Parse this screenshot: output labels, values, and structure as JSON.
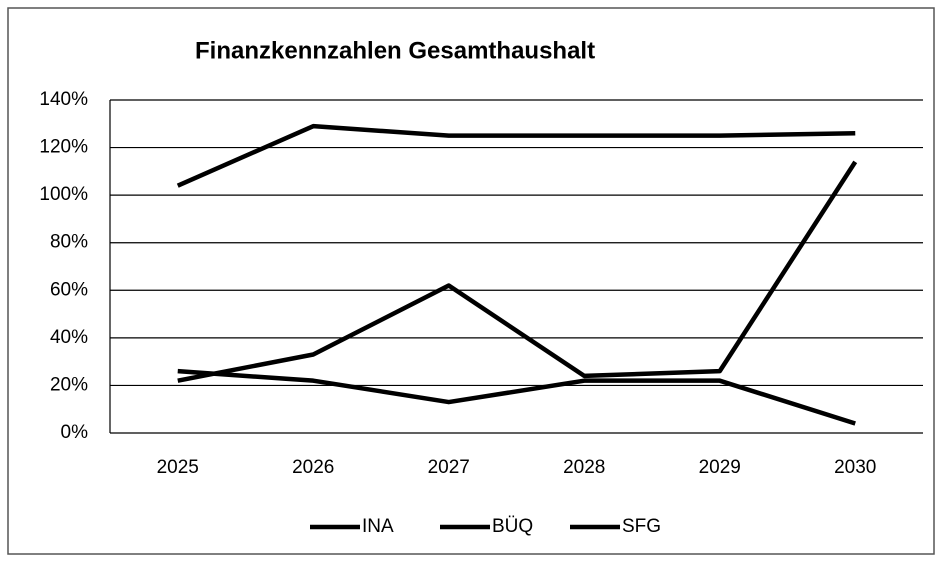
{
  "chart_data": {
    "type": "line",
    "title": "Finanzkennzahlen Gesamthaushalt",
    "categories": [
      "2025",
      "2026",
      "2027",
      "2028",
      "2029",
      "2030"
    ],
    "series": [
      {
        "name": "INA",
        "color": "#000000",
        "values": [
          104,
          129,
          125,
          125,
          125,
          126
        ]
      },
      {
        "name": "BÜQ",
        "color": "#000000",
        "values": [
          22,
          33,
          62,
          24,
          26,
          114
        ]
      },
      {
        "name": "SFG",
        "color": "#000000",
        "values": [
          26,
          22,
          13,
          22,
          22,
          4
        ]
      }
    ],
    "ylim": [
      0,
      140
    ],
    "yticks": [
      {
        "value": 0,
        "label": "0%"
      },
      {
        "value": 20,
        "label": "20%"
      },
      {
        "value": 40,
        "label": "40%"
      },
      {
        "value": 60,
        "label": "60%"
      },
      {
        "value": 80,
        "label": "80%"
      },
      {
        "value": 100,
        "label": "100%"
      },
      {
        "value": 120,
        "label": "120%"
      },
      {
        "value": 140,
        "label": "140%"
      }
    ],
    "grid": true,
    "legend": "bottom"
  }
}
